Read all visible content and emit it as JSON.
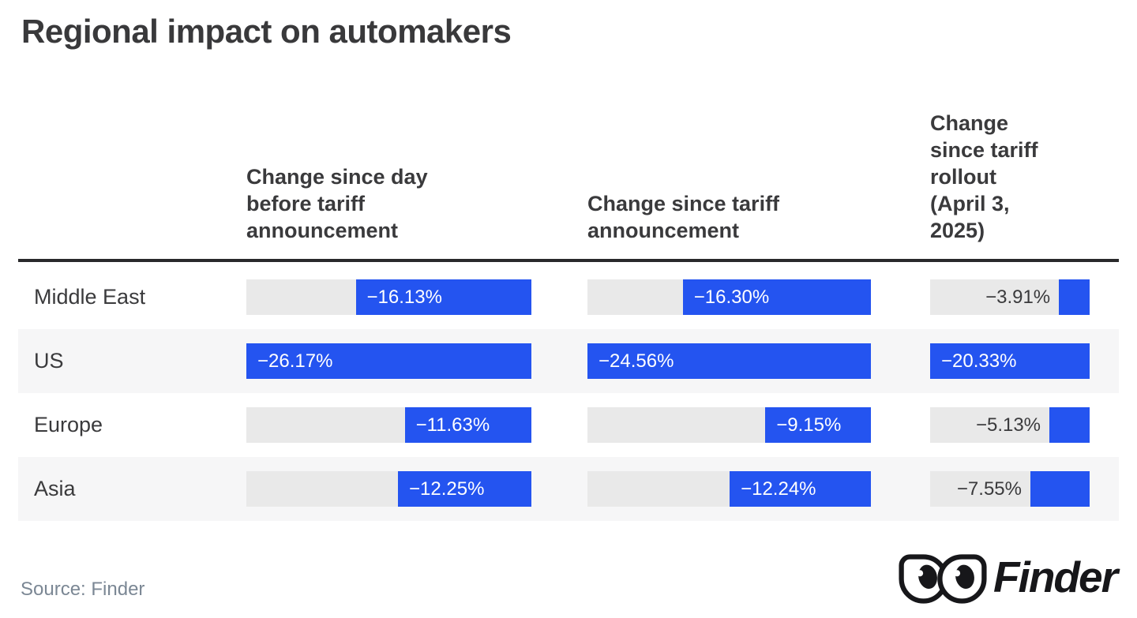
{
  "title": "Regional impact on automakers",
  "source_label": "Source: Finder",
  "brand": {
    "name": "Finder"
  },
  "colors": {
    "bar_blue": "#2454f0",
    "track_gray": "#e9e9e9",
    "row_stripe": "#f6f6f7",
    "text_dark": "#3a3a3c",
    "header_rule": "#29292b",
    "source_text": "#7b8794",
    "bar_label_light": "#ffffff",
    "logo_ink": "#17171a"
  },
  "chart_data": {
    "type": "bar",
    "orientation": "horizontal, bars anchored to right edge of each track",
    "title": "Regional impact on automakers",
    "categories": [
      "Middle East",
      "US",
      "Europe",
      "Asia"
    ],
    "series": [
      {
        "name": "Change since day before tariff announcement",
        "header": "Change since day\nbefore tariff\nannouncement",
        "values": [
          -16.13,
          -26.17,
          -11.63,
          -12.25
        ],
        "labels": [
          "−16.13%",
          "−26.17%",
          "−11.63%",
          "−12.25%"
        ]
      },
      {
        "name": "Change since tariff announcement",
        "header": "Change since tariff\nannouncement",
        "values": [
          -16.3,
          -24.56,
          -9.15,
          -12.24
        ],
        "labels": [
          "−16.30%",
          "−24.56%",
          "−9.15%",
          "−12.24%"
        ]
      },
      {
        "name": "Change since tariff rollout (April 3, 2025)",
        "header": "Change\nsince tariff\nrollout\n(April 3,\n2025)",
        "values": [
          -3.91,
          -20.33,
          -5.13,
          -7.55
        ],
        "labels": [
          "−3.91%",
          "−20.33%",
          "−5.13%",
          "−7.55%"
        ]
      }
    ],
    "value_format": "percent",
    "scaling": "each column scaled independently to its own maximum magnitude",
    "grid": false,
    "legend": false
  }
}
